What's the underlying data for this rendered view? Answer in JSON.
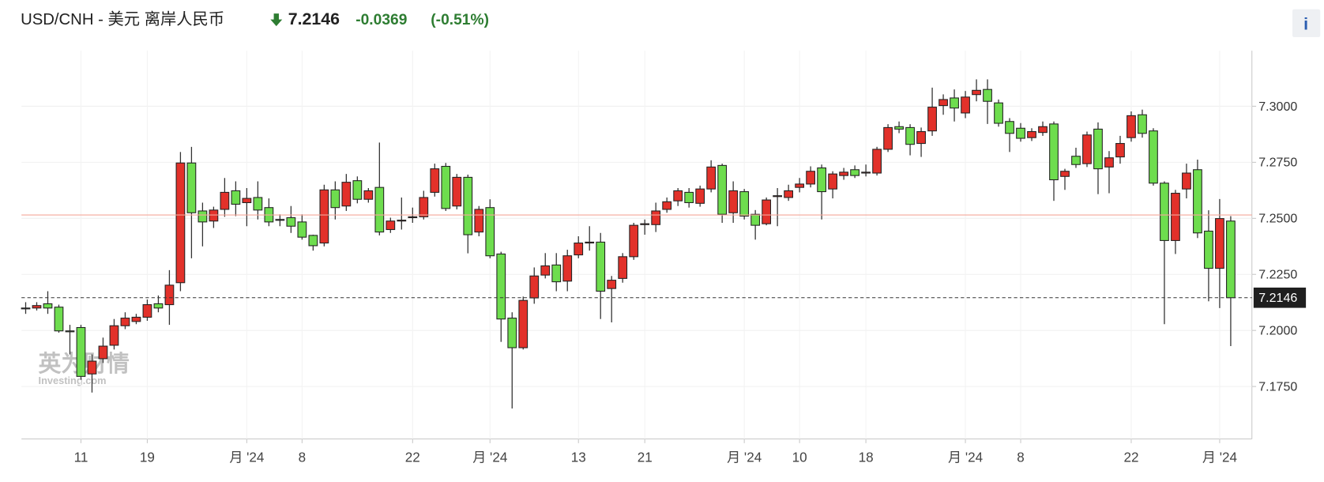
{
  "chart_data": {
    "type": "candlestick",
    "title": "USD/CNH - 美元 离岸人民币",
    "last_price": 7.2146,
    "change": "-0.0369",
    "change_percent": "(-0.51%)",
    "prev_close": 7.2515,
    "info_button": "i",
    "watermark": {
      "brand": "英为财情",
      "site": "Investing.com"
    },
    "up_color": "#e2312a",
    "down_color": "#6edd4e",
    "ylim": [
      7.1516,
      7.3248
    ],
    "yticks": [
      {
        "value": 7.175,
        "label": "7.1750"
      },
      {
        "value": 7.2,
        "label": "7.2000"
      },
      {
        "value": 7.225,
        "label": "7.2250"
      },
      {
        "value": 7.25,
        "label": "7.2500"
      },
      {
        "value": 7.275,
        "label": "7.2750"
      },
      {
        "value": 7.3,
        "label": "7.3000"
      }
    ],
    "grid": true,
    "categories": [
      null,
      null,
      null,
      null,
      null,
      "11",
      null,
      null,
      null,
      null,
      null,
      "19",
      null,
      null,
      null,
      null,
      null,
      null,
      null,
      null,
      "月 '24",
      null,
      null,
      null,
      null,
      "8",
      null,
      null,
      null,
      null,
      null,
      null,
      null,
      null,
      null,
      "22",
      null,
      null,
      null,
      null,
      null,
      null,
      "月 '24",
      null,
      null,
      null,
      null,
      null,
      null,
      null,
      "13",
      null,
      null,
      null,
      null,
      null,
      "21",
      null,
      null,
      null,
      null,
      null,
      null,
      null,
      null,
      "月 '24",
      null,
      null,
      null,
      null,
      "10",
      null,
      null,
      null,
      null,
      null,
      "18",
      null,
      null,
      null,
      null,
      null,
      null,
      null,
      null,
      "月 '24",
      null,
      null,
      null,
      null,
      "8",
      null,
      null,
      null,
      null,
      null,
      null,
      null,
      null,
      null,
      "22",
      null,
      null,
      null,
      null,
      null,
      null,
      null,
      "月 '24",
      null
    ],
    "open": [
      7.21,
      7.21,
      7.2119,
      7.2104,
      7.1998,
      7.2013,
      7.1806,
      7.1874,
      7.1934,
      7.2021,
      7.204,
      7.2059,
      7.2119,
      7.2115,
      7.2213,
      7.2747,
      7.2533,
      7.2488,
      7.254,
      7.2623,
      7.257,
      7.2593,
      7.2548,
      7.2495,
      7.2503,
      7.2484,
      7.2424,
      7.239,
      7.2627,
      7.2555,
      7.2668,
      7.2585,
      7.2638,
      7.245,
      7.2488,
      7.2503,
      7.2507,
      7.2616,
      7.2732,
      7.2555,
      7.2683,
      7.2439,
      7.2548,
      7.2341,
      7.2055,
      7.1923,
      7.2145,
      7.2247,
      7.2292,
      7.222,
      7.2337,
      7.239,
      7.2394,
      7.2187,
      7.2232,
      7.2329,
      7.2472,
      7.2472,
      7.254,
      7.2578,
      7.2616,
      7.2567,
      7.2631,
      7.2736,
      7.2525,
      7.2619,
      7.2518,
      7.2476,
      7.2597,
      7.2593,
      7.2638,
      7.2653,
      7.2725,
      7.2631,
      7.2691,
      7.2717,
      7.2702,
      7.2702,
      7.2808,
      7.2909,
      7.2905,
      7.2834,
      7.289,
      7.3003,
      7.3037,
      7.297,
      7.3052,
      7.3075,
      7.3015,
      7.2932,
      7.2902,
      7.286,
      7.2883,
      7.2921,
      7.2687,
      7.2777,
      7.2744,
      7.2898,
      7.2729,
      7.2774,
      7.286,
      7.2962,
      7.289,
      7.2657,
      7.2401,
      7.2631,
      7.2717,
      7.2443,
      7.2277,
      7.2488
    ],
    "high": [
      7.2126,
      7.2126,
      7.2175,
      7.2115,
      7.2025,
      7.2025,
      7.1893,
      7.1968,
      7.2051,
      7.2081,
      7.2074,
      7.2138,
      7.2156,
      7.2269,
      7.2796,
      7.2819,
      7.257,
      7.2552,
      7.268,
      7.2665,
      7.2635,
      7.2665,
      7.2589,
      7.2518,
      7.2555,
      7.2518,
      7.2427,
      7.265,
      7.2665,
      7.2698,
      7.2687,
      7.2635,
      7.2838,
      7.2503,
      7.2593,
      7.2548,
      7.2623,
      7.2744,
      7.2747,
      7.2698,
      7.2695,
      7.2555,
      7.2585,
      7.2351,
      7.2081,
      7.2151,
      7.2281,
      7.2345,
      7.2345,
      7.236,
      7.242,
      7.2465,
      7.2435,
      7.2243,
      7.2345,
      7.248,
      7.2495,
      7.257,
      7.2593,
      7.2635,
      7.2635,
      7.2646,
      7.2759,
      7.2744,
      7.2665,
      7.2631,
      7.2537,
      7.2593,
      7.2635,
      7.265,
      7.268,
      7.2732,
      7.274,
      7.271,
      7.2725,
      7.2736,
      7.274,
      7.2819,
      7.292,
      7.2932,
      7.292,
      7.2905,
      7.3083,
      7.3053,
      7.3075,
      7.3068,
      7.312,
      7.312,
      7.303,
      7.2947,
      7.2925,
      7.2902,
      7.2932,
      7.2932,
      7.2721,
      7.2815,
      7.2887,
      7.2928,
      7.28,
      7.2868,
      7.2977,
      7.2985,
      7.2902,
      7.2665,
      7.2627,
      7.2744,
      7.2762,
      7.2536,
      7.2586,
      7.251
    ],
    "low": [
      7.2074,
      7.2089,
      7.2074,
      7.199,
      7.1893,
      7.178,
      7.1723,
      7.1855,
      7.1915,
      7.2006,
      7.2028,
      7.2043,
      7.2081,
      7.2025,
      7.2175,
      7.2322,
      7.2375,
      7.2457,
      7.2507,
      7.251,
      7.2465,
      7.2495,
      7.2465,
      7.2465,
      7.2435,
      7.2405,
      7.2356,
      7.2375,
      7.2495,
      7.2533,
      7.2567,
      7.257,
      7.2424,
      7.2435,
      7.245,
      7.248,
      7.2495,
      7.2597,
      7.2533,
      7.254,
      7.2344,
      7.242,
      7.2322,
      7.1949,
      7.1652,
      7.1915,
      7.2119,
      7.2232,
      7.2175,
      7.2175,
      7.2322,
      7.2356,
      7.2051,
      7.2036,
      7.2213,
      7.2315,
      7.2427,
      7.2439,
      7.2525,
      7.2555,
      7.2548,
      7.2552,
      7.2616,
      7.248,
      7.248,
      7.2495,
      7.2405,
      7.2469,
      7.2465,
      7.2578,
      7.2616,
      7.2638,
      7.2495,
      7.2589,
      7.2672,
      7.268,
      7.2687,
      7.2691,
      7.2796,
      7.288,
      7.2781,
      7.2774,
      7.2868,
      7.2962,
      7.2932,
      7.2947,
      7.3022,
      7.2921,
      7.2909,
      7.2796,
      7.2842,
      7.2845,
      7.2868,
      7.2578,
      7.2627,
      7.2725,
      7.2729,
      7.2608,
      7.2612,
      7.2744,
      7.2842,
      7.286,
      7.2646,
      7.2028,
      7.2341,
      7.2589,
      7.2412,
      7.213,
      7.21,
      7.193
    ],
    "close": [
      7.21,
      7.2111,
      7.21,
      7.1998,
      7.1994,
      7.1795,
      7.1863,
      7.193,
      7.2021,
      7.2055,
      7.2059,
      7.2115,
      7.21,
      7.2202,
      7.2747,
      7.2525,
      7.2484,
      7.2537,
      7.2616,
      7.2563,
      7.2589,
      7.2537,
      7.2484,
      7.2492,
      7.2465,
      7.2416,
      7.2378,
      7.2627,
      7.2548,
      7.2661,
      7.2585,
      7.2623,
      7.2439,
      7.2488,
      7.2492,
      7.2507,
      7.2593,
      7.2721,
      7.2544,
      7.2683,
      7.2427,
      7.254,
      7.2333,
      7.2051,
      7.1923,
      7.2134,
      7.2243,
      7.2288,
      7.2217,
      7.2333,
      7.239,
      7.2394,
      7.2175,
      7.2224,
      7.2329,
      7.2469,
      7.2476,
      7.2533,
      7.2574,
      7.2623,
      7.257,
      7.2631,
      7.2729,
      7.2518,
      7.2623,
      7.251,
      7.2469,
      7.2582,
      7.2601,
      7.2623,
      7.2653,
      7.271,
      7.2619,
      7.2698,
      7.2706,
      7.2691,
      7.2706,
      7.2808,
      7.2905,
      7.2898,
      7.283,
      7.2887,
      7.2996,
      7.303,
      7.2992,
      7.3041,
      7.3071,
      7.3022,
      7.2924,
      7.2879,
      7.2857,
      7.2887,
      7.2909,
      7.2672,
      7.271,
      7.274,
      7.2872,
      7.2721,
      7.277,
      7.2834,
      7.2958,
      7.2879,
      7.2657,
      7.2401,
      7.2612,
      7.2702,
      7.2435,
      7.2277,
      7.2499,
      7.2146
    ]
  }
}
